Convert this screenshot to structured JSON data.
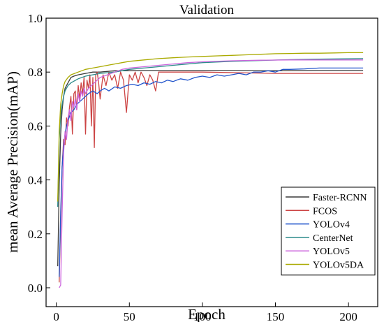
{
  "chart_data": {
    "type": "line",
    "title": "Validation",
    "xlabel": "Epoch",
    "ylabel": "mean Average Precision(mAP)",
    "xlim": [
      -7,
      220
    ],
    "ylim": [
      -0.07,
      1.0
    ],
    "xticks": [
      0,
      50,
      100,
      150,
      200
    ],
    "yticks": [
      0.0,
      0.2,
      0.4,
      0.6,
      0.8,
      1.0
    ],
    "xtick_labels": [
      "0",
      "50",
      "100",
      "150",
      "200"
    ],
    "ytick_labels": [
      "0.0",
      "0.2",
      "0.4",
      "0.6",
      "0.8",
      "1.0"
    ],
    "grid": false,
    "legend_position": "bottom-right",
    "series": [
      {
        "name": "Faster-RCNN",
        "color": "#3a3a3a",
        "points": [
          [
            1,
            0.08
          ],
          [
            2,
            0.38
          ],
          [
            3,
            0.57
          ],
          [
            4,
            0.66
          ],
          [
            5,
            0.71
          ],
          [
            6,
            0.74
          ],
          [
            8,
            0.76
          ],
          [
            10,
            0.78
          ],
          [
            12,
            0.785
          ],
          [
            15,
            0.79
          ],
          [
            20,
            0.795
          ],
          [
            25,
            0.8
          ],
          [
            30,
            0.8
          ],
          [
            40,
            0.805
          ],
          [
            50,
            0.805
          ],
          [
            60,
            0.806
          ],
          [
            70,
            0.806
          ],
          [
            80,
            0.806
          ],
          [
            100,
            0.806
          ],
          [
            120,
            0.806
          ],
          [
            150,
            0.805
          ],
          [
            180,
            0.806
          ],
          [
            210,
            0.806
          ]
        ]
      },
      {
        "name": "FCOS",
        "color": "#cc4444",
        "points": [
          [
            2,
            0.02
          ],
          [
            3,
            0.25
          ],
          [
            4,
            0.45
          ],
          [
            5,
            0.55
          ],
          [
            6,
            0.53
          ],
          [
            7,
            0.63
          ],
          [
            8,
            0.6
          ],
          [
            9,
            0.67
          ],
          [
            10,
            0.71
          ],
          [
            11,
            0.57
          ],
          [
            12,
            0.72
          ],
          [
            13,
            0.73
          ],
          [
            14,
            0.66
          ],
          [
            15,
            0.75
          ],
          [
            16,
            0.7
          ],
          [
            17,
            0.76
          ],
          [
            18,
            0.72
          ],
          [
            19,
            0.78
          ],
          [
            20,
            0.57
          ],
          [
            21,
            0.77
          ],
          [
            22,
            0.74
          ],
          [
            23,
            0.79
          ],
          [
            24,
            0.6
          ],
          [
            25,
            0.78
          ],
          [
            26,
            0.52
          ],
          [
            27,
            0.79
          ],
          [
            28,
            0.8
          ],
          [
            29,
            0.76
          ],
          [
            30,
            0.7
          ],
          [
            32,
            0.79
          ],
          [
            34,
            0.75
          ],
          [
            36,
            0.8
          ],
          [
            38,
            0.77
          ],
          [
            40,
            0.79
          ],
          [
            42,
            0.74
          ],
          [
            44,
            0.8
          ],
          [
            46,
            0.77
          ],
          [
            48,
            0.65
          ],
          [
            50,
            0.79
          ],
          [
            52,
            0.77
          ],
          [
            54,
            0.8
          ],
          [
            56,
            0.76
          ],
          [
            58,
            0.8
          ],
          [
            60,
            0.78
          ],
          [
            62,
            0.75
          ],
          [
            64,
            0.79
          ],
          [
            66,
            0.77
          ],
          [
            68,
            0.73
          ],
          [
            70,
            0.8
          ],
          [
            80,
            0.8
          ],
          [
            100,
            0.8
          ],
          [
            150,
            0.795
          ],
          [
            210,
            0.795
          ]
        ]
      },
      {
        "name": "YOLOv4",
        "color": "#2255cc",
        "points": [
          [
            2,
            0.04
          ],
          [
            3,
            0.28
          ],
          [
            4,
            0.45
          ],
          [
            5,
            0.53
          ],
          [
            6,
            0.57
          ],
          [
            7,
            0.6
          ],
          [
            8,
            0.62
          ],
          [
            10,
            0.65
          ],
          [
            12,
            0.66
          ],
          [
            14,
            0.68
          ],
          [
            16,
            0.69
          ],
          [
            18,
            0.7
          ],
          [
            20,
            0.71
          ],
          [
            22,
            0.72
          ],
          [
            25,
            0.73
          ],
          [
            28,
            0.72
          ],
          [
            30,
            0.73
          ],
          [
            33,
            0.74
          ],
          [
            36,
            0.73
          ],
          [
            40,
            0.745
          ],
          [
            44,
            0.74
          ],
          [
            48,
            0.75
          ],
          [
            52,
            0.755
          ],
          [
            56,
            0.75
          ],
          [
            60,
            0.76
          ],
          [
            64,
            0.755
          ],
          [
            68,
            0.765
          ],
          [
            72,
            0.76
          ],
          [
            76,
            0.77
          ],
          [
            80,
            0.765
          ],
          [
            85,
            0.775
          ],
          [
            90,
            0.77
          ],
          [
            95,
            0.78
          ],
          [
            100,
            0.785
          ],
          [
            105,
            0.78
          ],
          [
            110,
            0.79
          ],
          [
            115,
            0.785
          ],
          [
            120,
            0.79
          ],
          [
            125,
            0.795
          ],
          [
            130,
            0.79
          ],
          [
            135,
            0.8
          ],
          [
            140,
            0.8
          ],
          [
            145,
            0.805
          ],
          [
            150,
            0.8
          ],
          [
            155,
            0.81
          ],
          [
            160,
            0.81
          ],
          [
            170,
            0.812
          ],
          [
            180,
            0.815
          ],
          [
            190,
            0.815
          ],
          [
            200,
            0.815
          ],
          [
            210,
            0.815
          ]
        ]
      },
      {
        "name": "CenterNet",
        "color": "#2a8a8a",
        "points": [
          [
            1,
            0.3
          ],
          [
            2,
            0.55
          ],
          [
            3,
            0.64
          ],
          [
            4,
            0.68
          ],
          [
            5,
            0.71
          ],
          [
            6,
            0.73
          ],
          [
            8,
            0.75
          ],
          [
            10,
            0.76
          ],
          [
            15,
            0.775
          ],
          [
            20,
            0.785
          ],
          [
            30,
            0.795
          ],
          [
            40,
            0.8
          ],
          [
            50,
            0.81
          ],
          [
            60,
            0.815
          ],
          [
            70,
            0.82
          ],
          [
            80,
            0.825
          ],
          [
            90,
            0.83
          ],
          [
            100,
            0.835
          ],
          [
            120,
            0.84
          ],
          [
            140,
            0.843
          ],
          [
            160,
            0.846
          ],
          [
            180,
            0.848
          ],
          [
            210,
            0.85
          ]
        ]
      },
      {
        "name": "YOLOv5",
        "color": "#cc66dd",
        "points": [
          [
            2,
            0.0
          ],
          [
            3,
            0.01
          ],
          [
            4,
            0.28
          ],
          [
            5,
            0.5
          ],
          [
            6,
            0.58
          ],
          [
            7,
            0.55
          ],
          [
            8,
            0.63
          ],
          [
            9,
            0.66
          ],
          [
            10,
            0.62
          ],
          [
            11,
            0.69
          ],
          [
            12,
            0.67
          ],
          [
            13,
            0.7
          ],
          [
            14,
            0.66
          ],
          [
            15,
            0.72
          ],
          [
            16,
            0.69
          ],
          [
            17,
            0.73
          ],
          [
            18,
            0.71
          ],
          [
            19,
            0.74
          ],
          [
            20,
            0.72
          ],
          [
            22,
            0.74
          ],
          [
            24,
            0.75
          ],
          [
            26,
            0.76
          ],
          [
            28,
            0.77
          ],
          [
            30,
            0.78
          ],
          [
            35,
            0.79
          ],
          [
            40,
            0.8
          ],
          [
            45,
            0.81
          ],
          [
            50,
            0.815
          ],
          [
            60,
            0.82
          ],
          [
            70,
            0.825
          ],
          [
            80,
            0.83
          ],
          [
            90,
            0.835
          ],
          [
            100,
            0.838
          ],
          [
            120,
            0.842
          ],
          [
            140,
            0.844
          ],
          [
            160,
            0.845
          ],
          [
            180,
            0.845
          ],
          [
            210,
            0.845
          ]
        ]
      },
      {
        "name": "YOLOv5DA",
        "color": "#aaaa00",
        "points": [
          [
            1,
            0.32
          ],
          [
            2,
            0.58
          ],
          [
            3,
            0.68
          ],
          [
            4,
            0.72
          ],
          [
            5,
            0.75
          ],
          [
            6,
            0.765
          ],
          [
            8,
            0.78
          ],
          [
            10,
            0.79
          ],
          [
            15,
            0.8
          ],
          [
            20,
            0.81
          ],
          [
            25,
            0.815
          ],
          [
            30,
            0.82
          ],
          [
            35,
            0.825
          ],
          [
            40,
            0.83
          ],
          [
            45,
            0.835
          ],
          [
            50,
            0.84
          ],
          [
            60,
            0.845
          ],
          [
            70,
            0.85
          ],
          [
            80,
            0.853
          ],
          [
            90,
            0.856
          ],
          [
            100,
            0.858
          ],
          [
            110,
            0.86
          ],
          [
            120,
            0.862
          ],
          [
            130,
            0.864
          ],
          [
            140,
            0.866
          ],
          [
            150,
            0.868
          ],
          [
            160,
            0.869
          ],
          [
            170,
            0.87
          ],
          [
            180,
            0.87
          ],
          [
            190,
            0.871
          ],
          [
            200,
            0.872
          ],
          [
            210,
            0.872
          ]
        ]
      }
    ]
  }
}
